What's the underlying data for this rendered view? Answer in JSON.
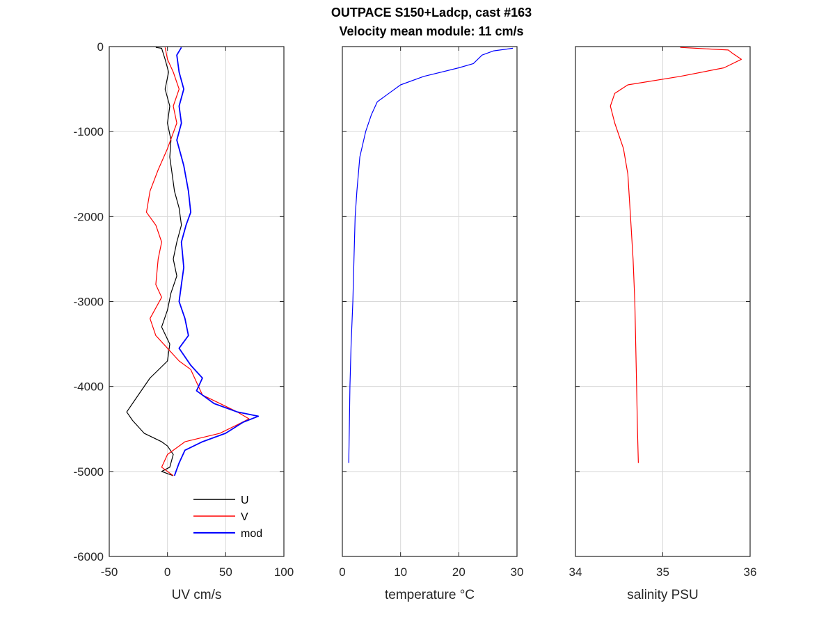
{
  "figure": {
    "title_line1": "OUTPACE S150+Ladcp, cast #163",
    "title_line2": "Velocity mean module:  11 cm/s"
  },
  "chart_data": [
    {
      "type": "line",
      "xlabel": "UV cm/s",
      "xlim": [
        -50,
        100
      ],
      "ylim": [
        -6000,
        0
      ],
      "xticks": [
        -50,
        0,
        50,
        100
      ],
      "yticks": [
        0,
        -1000,
        -2000,
        -3000,
        -4000,
        -5000,
        -6000
      ],
      "grid": true,
      "legend": {
        "placement": "bottom-right",
        "entries": [
          "U",
          "V",
          "mod"
        ]
      },
      "series": [
        {
          "name": "U",
          "color": "#000000",
          "points": [
            [
              -10,
              -10
            ],
            [
              -5,
              -20
            ],
            [
              -2,
              -150
            ],
            [
              1,
              -300
            ],
            [
              -2,
              -500
            ],
            [
              2,
              -700
            ],
            [
              0,
              -900
            ],
            [
              3,
              -1100
            ],
            [
              2,
              -1300
            ],
            [
              4,
              -1500
            ],
            [
              6,
              -1700
            ],
            [
              10,
              -1900
            ],
            [
              12,
              -2100
            ],
            [
              8,
              -2300
            ],
            [
              5,
              -2500
            ],
            [
              8,
              -2700
            ],
            [
              3,
              -2900
            ],
            [
              0,
              -3100
            ],
            [
              -5,
              -3300
            ],
            [
              2,
              -3500
            ],
            [
              0,
              -3700
            ],
            [
              -15,
              -3900
            ],
            [
              -25,
              -4100
            ],
            [
              -35,
              -4300
            ],
            [
              -30,
              -4400
            ],
            [
              -20,
              -4550
            ],
            [
              -5,
              -4650
            ],
            [
              0,
              -4700
            ],
            [
              5,
              -4800
            ],
            [
              2,
              -4950
            ],
            [
              -5,
              -5000
            ],
            [
              5,
              -5050
            ]
          ]
        },
        {
          "name": "V",
          "color": "#ff0000",
          "points": [
            [
              -2,
              -10
            ],
            [
              0,
              -150
            ],
            [
              5,
              -300
            ],
            [
              10,
              -500
            ],
            [
              5,
              -700
            ],
            [
              8,
              -900
            ],
            [
              0,
              -1200
            ],
            [
              -8,
              -1450
            ],
            [
              -15,
              -1700
            ],
            [
              -18,
              -1950
            ],
            [
              -10,
              -2100
            ],
            [
              -5,
              -2300
            ],
            [
              -8,
              -2500
            ],
            [
              -10,
              -2800
            ],
            [
              -5,
              -2950
            ],
            [
              -15,
              -3200
            ],
            [
              -10,
              -3400
            ],
            [
              0,
              -3550
            ],
            [
              10,
              -3700
            ],
            [
              20,
              -3800
            ],
            [
              25,
              -3950
            ],
            [
              30,
              -4100
            ],
            [
              45,
              -4200
            ],
            [
              60,
              -4300
            ],
            [
              70,
              -4380
            ],
            [
              60,
              -4450
            ],
            [
              45,
              -4550
            ],
            [
              15,
              -4650
            ],
            [
              0,
              -4800
            ],
            [
              -5,
              -4950
            ],
            [
              5,
              -5050
            ]
          ]
        },
        {
          "name": "mod",
          "color": "#0000ff",
          "points": [
            [
              12,
              -10
            ],
            [
              8,
              -100
            ],
            [
              10,
              -300
            ],
            [
              14,
              -500
            ],
            [
              10,
              -700
            ],
            [
              12,
              -900
            ],
            [
              8,
              -1100
            ],
            [
              14,
              -1400
            ],
            [
              18,
              -1700
            ],
            [
              20,
              -1950
            ],
            [
              16,
              -2100
            ],
            [
              12,
              -2300
            ],
            [
              14,
              -2600
            ],
            [
              12,
              -2800
            ],
            [
              10,
              -3000
            ],
            [
              15,
              -3200
            ],
            [
              18,
              -3400
            ],
            [
              10,
              -3550
            ],
            [
              20,
              -3750
            ],
            [
              30,
              -3900
            ],
            [
              25,
              -4050
            ],
            [
              40,
              -4200
            ],
            [
              60,
              -4300
            ],
            [
              78,
              -4350
            ],
            [
              65,
              -4420
            ],
            [
              50,
              -4550
            ],
            [
              30,
              -4650
            ],
            [
              15,
              -4750
            ],
            [
              10,
              -4900
            ],
            [
              6,
              -5050
            ]
          ]
        }
      ]
    },
    {
      "type": "line",
      "xlabel": "temperature °C",
      "xlim": [
        0,
        30
      ],
      "ylim": [
        -6000,
        0
      ],
      "xticks": [
        0,
        10,
        20,
        30
      ],
      "yticks": [
        0,
        -1000,
        -2000,
        -3000,
        -4000,
        -5000,
        -6000
      ],
      "grid": true,
      "series": [
        {
          "color": "#0000ff",
          "points": [
            [
              29.3,
              -20
            ],
            [
              26,
              -50
            ],
            [
              24,
              -100
            ],
            [
              22.5,
              -200
            ],
            [
              20,
              -250
            ],
            [
              14,
              -350
            ],
            [
              10,
              -450
            ],
            [
              8,
              -550
            ],
            [
              6,
              -650
            ],
            [
              5,
              -800
            ],
            [
              4,
              -1000
            ],
            [
              3,
              -1300
            ],
            [
              2.5,
              -1700
            ],
            [
              2.2,
              -2000
            ],
            [
              2,
              -2500
            ],
            [
              1.8,
              -3000
            ],
            [
              1.5,
              -3500
            ],
            [
              1.3,
              -4000
            ],
            [
              1.2,
              -4500
            ],
            [
              1.1,
              -4900
            ]
          ]
        }
      ]
    },
    {
      "type": "line",
      "xlabel": "salinity PSU",
      "xlim": [
        34,
        36
      ],
      "ylim": [
        -6000,
        0
      ],
      "xticks": [
        34,
        35,
        36
      ],
      "yticks": [
        0,
        -1000,
        -2000,
        -3000,
        -4000,
        -5000,
        -6000
      ],
      "grid": true,
      "series": [
        {
          "color": "#ff0000",
          "points": [
            [
              35.2,
              -10
            ],
            [
              35.75,
              -40
            ],
            [
              35.8,
              -80
            ],
            [
              35.9,
              -150
            ],
            [
              35.7,
              -250
            ],
            [
              35.2,
              -350
            ],
            [
              34.6,
              -450
            ],
            [
              34.45,
              -550
            ],
            [
              34.4,
              -700
            ],
            [
              34.45,
              -900
            ],
            [
              34.55,
              -1200
            ],
            [
              34.6,
              -1500
            ],
            [
              34.63,
              -2000
            ],
            [
              34.66,
              -2500
            ],
            [
              34.68,
              -3000
            ],
            [
              34.69,
              -3500
            ],
            [
              34.7,
              -4000
            ],
            [
              34.71,
              -4500
            ],
            [
              34.72,
              -4900
            ]
          ]
        }
      ]
    }
  ]
}
